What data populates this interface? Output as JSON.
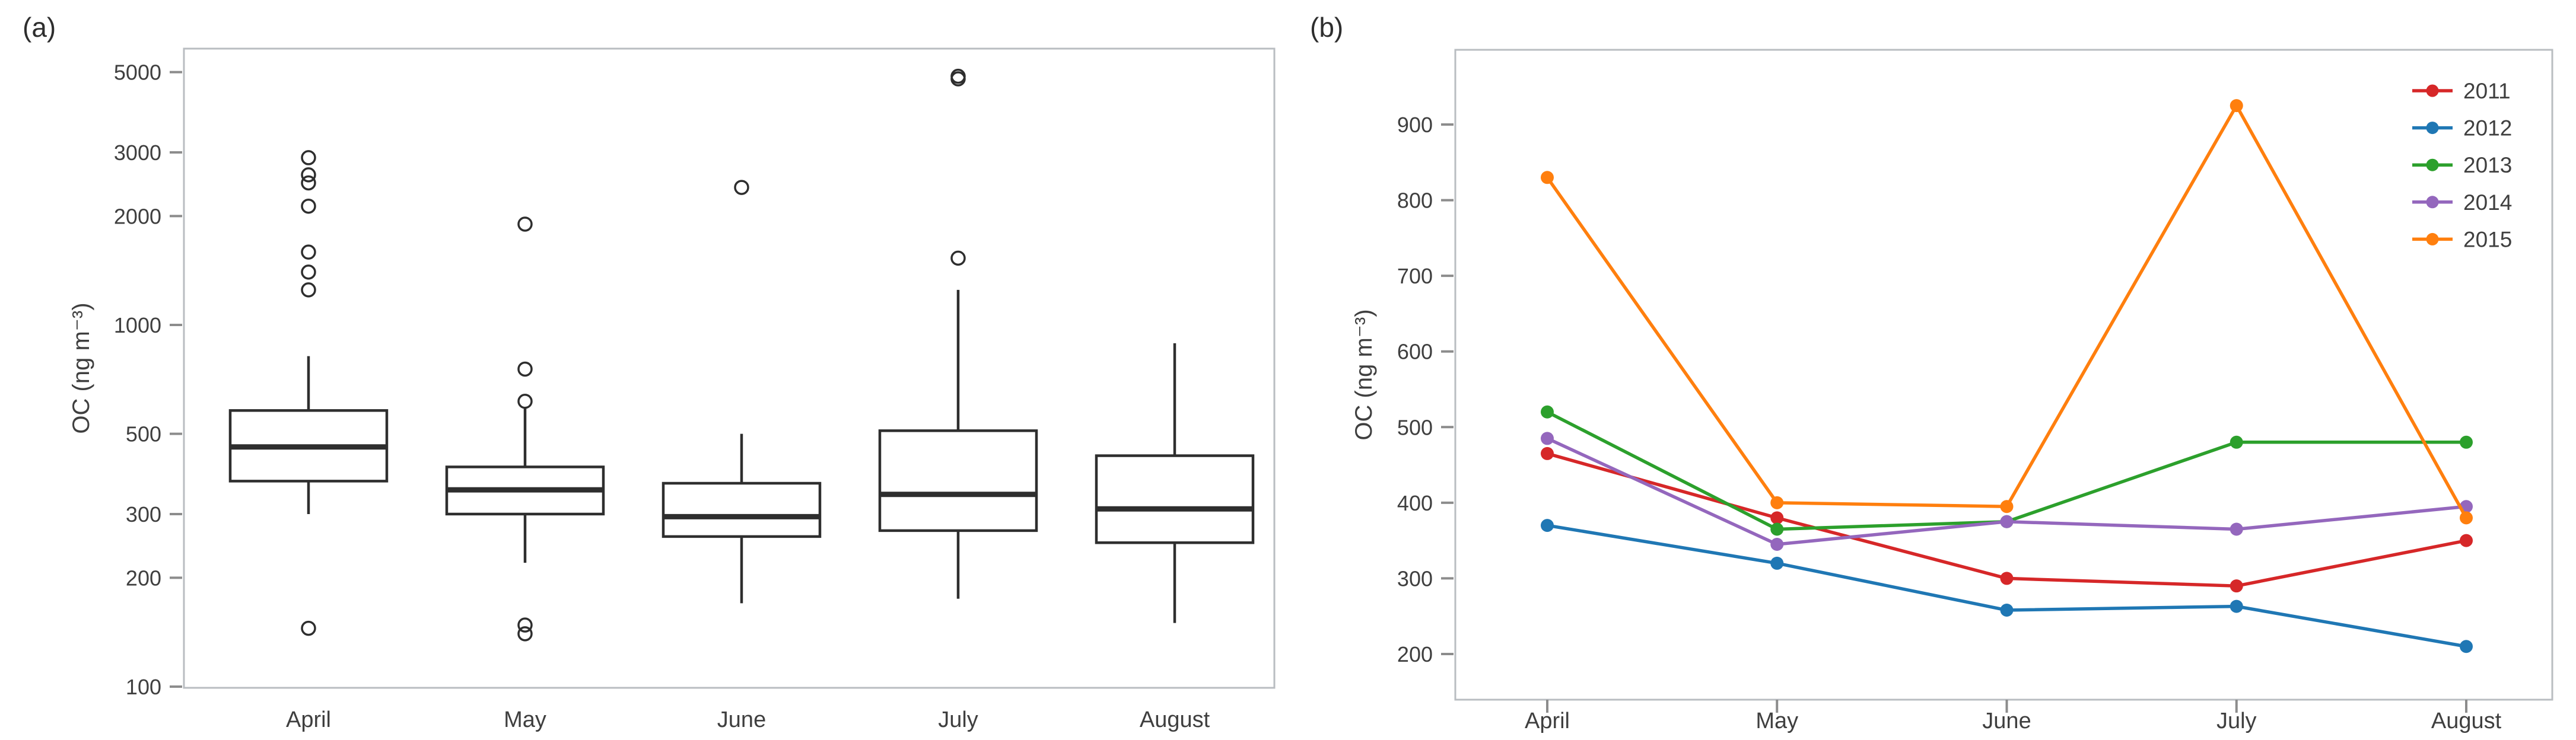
{
  "figure": {
    "background": "#ffffff"
  },
  "panel_a": {
    "tag": "(a)",
    "ylabel": "OC (ng m⁻³)"
  },
  "panel_b": {
    "tag": "(b)",
    "ylabel": "OC (ng m⁻³)"
  },
  "colors": {
    "frame": "#b9bdc1",
    "tick": "#8c8c8c",
    "text": "#3f3f3f",
    "box_stroke": "#2e2e2e"
  },
  "chart_data": [
    {
      "type": "box",
      "title": "",
      "xlabel": "",
      "ylabel": "OC (ng m⁻³)",
      "yscale": "log",
      "ylim": [
        100,
        5000
      ],
      "yticks": [
        5000,
        3000,
        2000,
        1000,
        500,
        300,
        200,
        100
      ],
      "categories": [
        "April",
        "May",
        "June",
        "July",
        "August"
      ],
      "grid": false,
      "boxes": [
        {
          "month": "April",
          "whisker_low": 300,
          "q1": 370,
          "median": 460,
          "q3": 580,
          "whisker_high": 820,
          "outliers": [
            2900,
            2600,
            2470,
            2130,
            1590,
            1400,
            1250,
            145
          ]
        },
        {
          "month": "May",
          "whisker_low": 220,
          "q1": 300,
          "median": 350,
          "q3": 405,
          "whisker_high": 590,
          "outliers": [
            1900,
            755,
            615,
            148,
            140
          ]
        },
        {
          "month": "June",
          "whisker_low": 170,
          "q1": 260,
          "median": 295,
          "q3": 365,
          "whisker_high": 500,
          "outliers": [
            2400
          ]
        },
        {
          "month": "July",
          "whisker_low": 175,
          "q1": 270,
          "median": 340,
          "q3": 510,
          "whisker_high": 1250,
          "outliers": [
            4870,
            4790,
            1530
          ]
        },
        {
          "month": "August",
          "whisker_low": 150,
          "q1": 250,
          "median": 310,
          "q3": 435,
          "whisker_high": 890,
          "outliers": []
        }
      ]
    },
    {
      "type": "line",
      "title": "",
      "xlabel": "",
      "ylabel": "OC (ng m⁻³)",
      "yscale": "linear",
      "ylim": [
        150,
        960
      ],
      "yticks": [
        900,
        800,
        700,
        600,
        500,
        400,
        300,
        200
      ],
      "categories": [
        "April",
        "May",
        "June",
        "July",
        "August"
      ],
      "grid": false,
      "legend_position": "top-right",
      "series": [
        {
          "name": "2011",
          "color": "#d62728",
          "values": [
            465,
            380,
            300,
            290,
            350
          ]
        },
        {
          "name": "2012",
          "color": "#1f77b4",
          "values": [
            370,
            320,
            258,
            263,
            210
          ]
        },
        {
          "name": "2013",
          "color": "#2ca02c",
          "values": [
            520,
            365,
            375,
            480,
            480
          ]
        },
        {
          "name": "2014",
          "color": "#9467bd",
          "values": [
            485,
            345,
            375,
            365,
            395
          ]
        },
        {
          "name": "2015",
          "color": "#ff7f0e",
          "values": [
            830,
            400,
            395,
            925,
            380
          ]
        }
      ]
    }
  ]
}
